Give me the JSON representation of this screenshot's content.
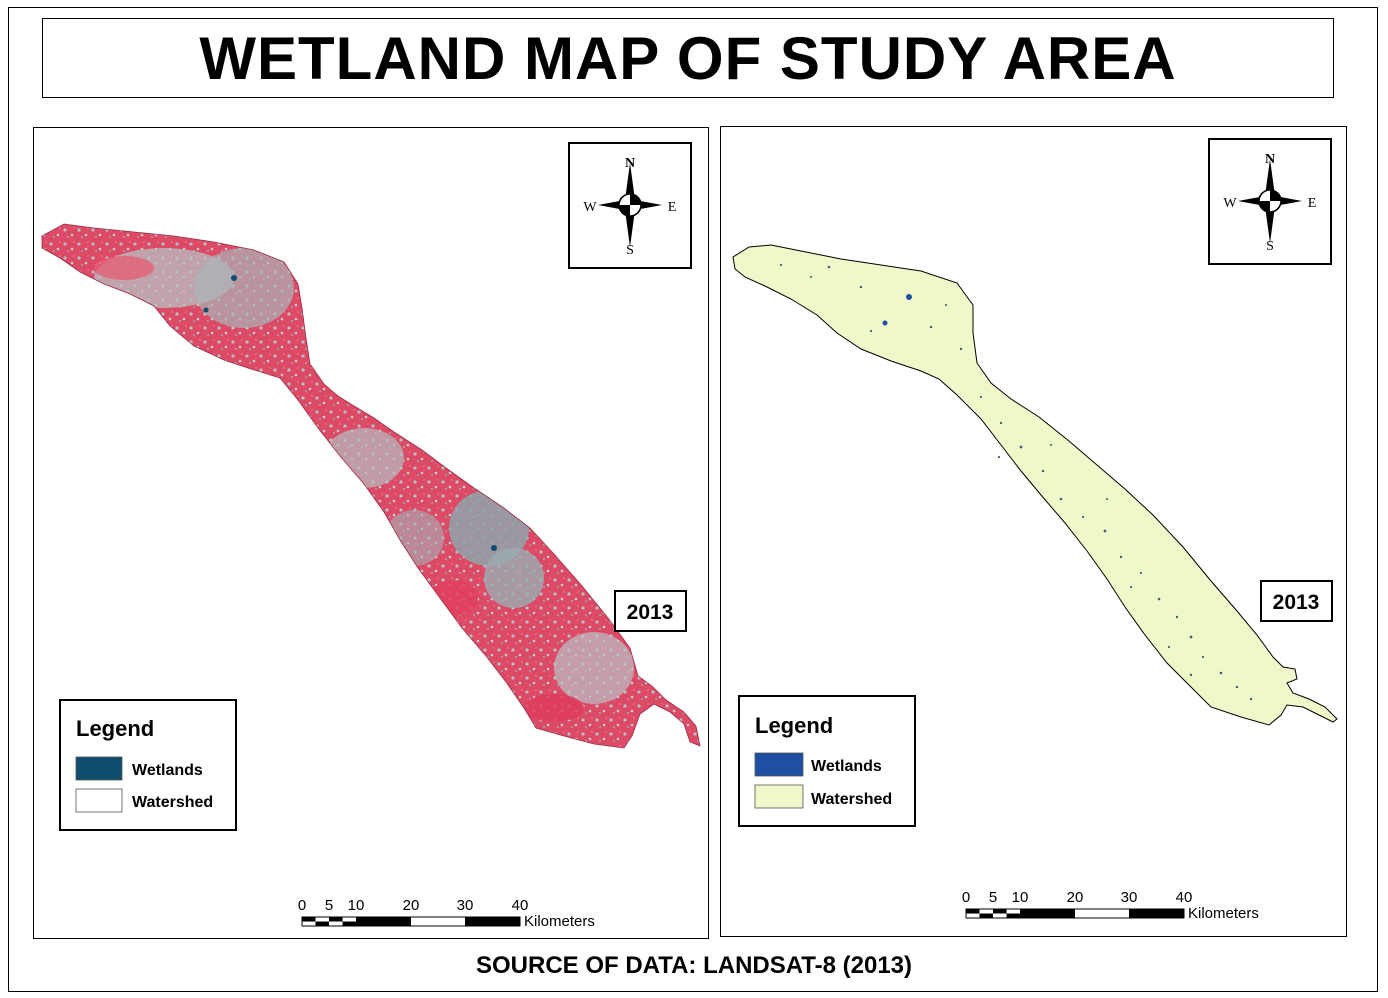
{
  "title": "WETLAND MAP OF STUDY AREA",
  "source": "SOURCE OF DATA: LANDSAT-8 (2013)",
  "colors": {
    "satellite_base": "#e0405f",
    "satellite_urban": "#a9b4b8",
    "wetland_left": "#0e4d6e",
    "wetland_right": "#1f4fa3",
    "watershed_fill": "#eef8c8"
  },
  "compass": {
    "north": "N",
    "south": "S",
    "east": "E",
    "west": "W"
  },
  "scale": {
    "ticks": [
      "0",
      "5",
      "10",
      "20",
      "30",
      "40"
    ],
    "unit": "Kilometers"
  },
  "left_map": {
    "year": "2013",
    "legend": {
      "title": "Legend",
      "items": [
        {
          "label": "Wetlands",
          "color": "#0e4d6e"
        },
        {
          "label": "Watershed",
          "color": "#ffffff"
        }
      ]
    }
  },
  "right_map": {
    "year": "2013",
    "legend": {
      "title": "Legend",
      "items": [
        {
          "label": "Wetlands",
          "color": "#1f4fa3"
        },
        {
          "label": "Watershed",
          "color": "#eef8c8"
        }
      ]
    }
  }
}
